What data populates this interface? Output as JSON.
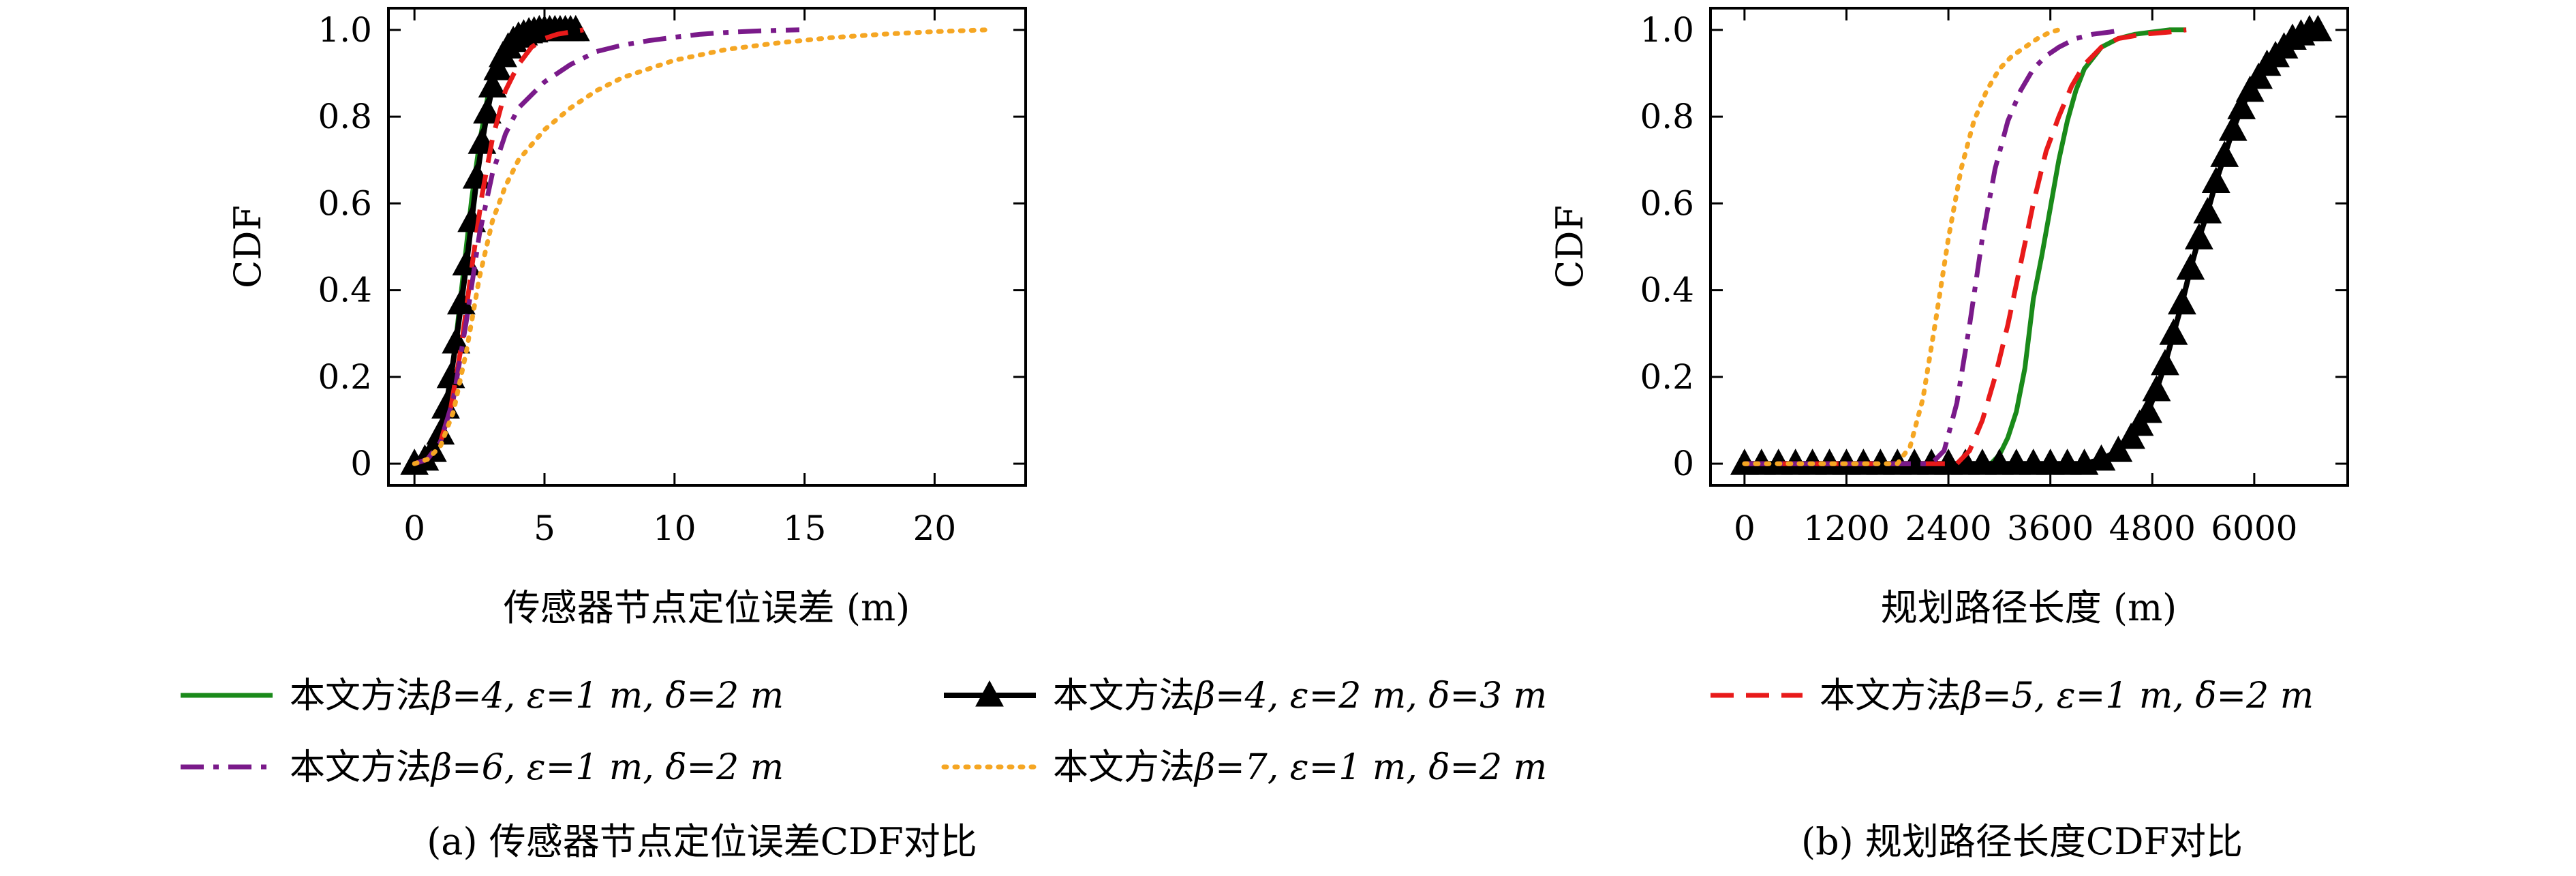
{
  "chart_data": [
    {
      "type": "line",
      "caption": "(a) 传感器节点定位误差CDF对比",
      "xlabel": "传感器节点定位误差 (m)",
      "ylabel": "CDF",
      "xlim": [
        -1,
        23.5
      ],
      "ylim": [
        -0.05,
        1.05
      ],
      "xticks": [
        0,
        5,
        10,
        15,
        20
      ],
      "yticks": [
        0,
        0.2,
        0.4,
        0.6,
        0.8,
        1.0
      ],
      "xtick_labels": [
        "0",
        "5",
        "10",
        "15",
        "20"
      ],
      "ytick_labels": [
        "0",
        "0.2",
        "0.4",
        "0.6",
        "0.8",
        "1.0"
      ],
      "grid": false,
      "series": [
        {
          "id": "s1",
          "x": [
            0,
            0.5,
            1.0,
            1.3,
            1.6,
            1.9,
            2.2,
            2.5,
            2.8,
            3.1,
            3.5,
            4.0,
            4.5,
            5.0,
            5.5,
            6.0
          ],
          "y": [
            0,
            0.01,
            0.06,
            0.15,
            0.29,
            0.45,
            0.61,
            0.74,
            0.84,
            0.91,
            0.96,
            0.985,
            0.995,
            1.0,
            1.0,
            1.0
          ]
        },
        {
          "id": "s2",
          "x": [
            0,
            0.4,
            0.7,
            1.0,
            1.2,
            1.4,
            1.6,
            1.8,
            2.0,
            2.2,
            2.4,
            2.6,
            2.8,
            3.0,
            3.2,
            3.4,
            3.6,
            3.8,
            4.0,
            4.2,
            4.4,
            4.6,
            4.8,
            5.0,
            5.2,
            5.4,
            5.6,
            5.8,
            6.0,
            6.2
          ],
          "y": [
            0,
            0.01,
            0.03,
            0.07,
            0.13,
            0.2,
            0.28,
            0.37,
            0.46,
            0.56,
            0.66,
            0.74,
            0.81,
            0.87,
            0.91,
            0.94,
            0.96,
            0.975,
            0.985,
            0.99,
            0.995,
            0.997,
            1.0,
            1.0,
            1.0,
            1.0,
            1.0,
            1.0,
            1.0,
            1.0
          ]
        },
        {
          "id": "s3",
          "x": [
            0,
            0.5,
            1.0,
            1.4,
            1.8,
            2.2,
            2.6,
            3.0,
            3.5,
            4.0,
            4.5,
            5.0,
            5.5,
            6.0,
            6.5
          ],
          "y": [
            0,
            0.01,
            0.05,
            0.13,
            0.27,
            0.45,
            0.62,
            0.75,
            0.86,
            0.92,
            0.96,
            0.98,
            0.99,
            0.995,
            1.0
          ]
        },
        {
          "id": "s4",
          "x": [
            0,
            0.5,
            1.0,
            1.5,
            2.0,
            2.5,
            3.0,
            3.5,
            4.0,
            5.0,
            6.0,
            7.0,
            8.0,
            9.0,
            10.0,
            11.0,
            12.0,
            13.0,
            14.0,
            14.8
          ],
          "y": [
            0,
            0.01,
            0.05,
            0.15,
            0.33,
            0.53,
            0.67,
            0.76,
            0.82,
            0.88,
            0.92,
            0.95,
            0.965,
            0.975,
            0.983,
            0.99,
            0.994,
            0.997,
            0.999,
            1.0
          ]
        },
        {
          "id": "s5",
          "x": [
            0,
            0.5,
            1.0,
            1.5,
            2.0,
            2.5,
            3.0,
            3.5,
            4.0,
            5.0,
            6.0,
            7.0,
            8.0,
            9.0,
            10.0,
            12.0,
            14.0,
            16.0,
            18.0,
            20.0,
            22.0
          ],
          "y": [
            0,
            0.01,
            0.04,
            0.12,
            0.26,
            0.43,
            0.56,
            0.64,
            0.7,
            0.77,
            0.82,
            0.86,
            0.89,
            0.91,
            0.93,
            0.955,
            0.97,
            0.982,
            0.99,
            0.996,
            1.0
          ]
        }
      ]
    },
    {
      "type": "line",
      "caption": "(b) 规划路径长度CDF对比",
      "xlabel": "规划路径长度 (m)",
      "ylabel": "CDF",
      "xlim": [
        -400,
        7100
      ],
      "ylim": [
        -0.05,
        1.05
      ],
      "xticks": [
        0,
        1200,
        2400,
        3600,
        4800,
        6000
      ],
      "yticks": [
        0,
        0.2,
        0.4,
        0.6,
        0.8,
        1.0
      ],
      "xtick_labels": [
        "0",
        "1200",
        "2400",
        "3600",
        "4800",
        "6000"
      ],
      "ytick_labels": [
        "0",
        "0.2",
        "0.4",
        "0.6",
        "0.8",
        "1.0"
      ],
      "grid": false,
      "series": [
        {
          "id": "s1",
          "x": [
            0,
            2900,
            3000,
            3100,
            3200,
            3300,
            3350,
            3400,
            3500,
            3600,
            3700,
            3800,
            3900,
            4000,
            4200,
            4400,
            4600,
            4800,
            5000,
            5200
          ],
          "y": [
            0,
            0,
            0.02,
            0.06,
            0.12,
            0.22,
            0.3,
            0.38,
            0.48,
            0.59,
            0.7,
            0.79,
            0.86,
            0.91,
            0.96,
            0.98,
            0.99,
            0.995,
            1.0,
            1.0
          ]
        },
        {
          "id": "s2",
          "x": [
            0,
            200,
            400,
            600,
            800,
            1000,
            1200,
            1400,
            1600,
            1800,
            2000,
            2200,
            2400,
            2600,
            2800,
            3000,
            3200,
            3400,
            3600,
            3800,
            4000,
            4200,
            4400,
            4550,
            4650,
            4750,
            4850,
            4950,
            5050,
            5150,
            5250,
            5350,
            5450,
            5550,
            5650,
            5750,
            5850,
            5950,
            6050,
            6150,
            6250,
            6350,
            6450,
            6550,
            6650,
            6750
          ],
          "y": [
            0,
            0,
            0,
            0,
            0,
            0,
            0,
            0,
            0,
            0,
            0,
            0,
            0,
            0,
            0,
            0,
            0,
            0,
            0,
            0,
            0,
            0.01,
            0.03,
            0.06,
            0.09,
            0.12,
            0.17,
            0.23,
            0.3,
            0.37,
            0.45,
            0.52,
            0.58,
            0.65,
            0.71,
            0.77,
            0.82,
            0.86,
            0.89,
            0.92,
            0.94,
            0.96,
            0.98,
            0.99,
            1.0,
            1.0
          ]
        },
        {
          "id": "s3",
          "x": [
            0,
            2500,
            2650,
            2800,
            2950,
            3100,
            3250,
            3400,
            3550,
            3700,
            3850,
            4000,
            4200,
            4400,
            4700,
            5000,
            5200
          ],
          "y": [
            0,
            0,
            0.03,
            0.1,
            0.2,
            0.32,
            0.46,
            0.6,
            0.72,
            0.8,
            0.87,
            0.92,
            0.96,
            0.98,
            0.99,
            0.995,
            1.0
          ]
        },
        {
          "id": "s4",
          "x": [
            0,
            2200,
            2350,
            2500,
            2650,
            2800,
            2950,
            3100,
            3250,
            3400,
            3550,
            3700,
            3900,
            4100,
            4300,
            4450
          ],
          "y": [
            0,
            0,
            0.03,
            0.14,
            0.32,
            0.52,
            0.68,
            0.79,
            0.86,
            0.91,
            0.94,
            0.96,
            0.98,
            0.99,
            0.995,
            1.0
          ]
        },
        {
          "id": "s5",
          "x": [
            0,
            1800,
            1950,
            2100,
            2250,
            2400,
            2550,
            2700,
            2850,
            3000,
            3150,
            3300,
            3450,
            3600,
            3700
          ],
          "y": [
            0,
            0,
            0.04,
            0.15,
            0.33,
            0.52,
            0.68,
            0.79,
            0.86,
            0.91,
            0.94,
            0.96,
            0.98,
            0.995,
            1.0
          ]
        }
      ]
    }
  ],
  "legend": {
    "items": [
      {
        "id": "s1",
        "label_prefix": "本文方法",
        "label_math": "β=4, ε=1 m, δ=2 m",
        "color": "#1a8a1a",
        "style": "solid"
      },
      {
        "id": "s2",
        "label_prefix": "本文方法",
        "label_math": "β=4, ε=2 m, δ=3 m",
        "color": "#000000",
        "style": "solid-triangle"
      },
      {
        "id": "s3",
        "label_prefix": "本文方法",
        "label_math": "β=5, ε=1 m, δ=2 m",
        "color": "#e81a1a",
        "style": "dashed"
      },
      {
        "id": "s4",
        "label_prefix": "本文方法",
        "label_math": "β=6, ε=1 m, δ=2 m",
        "color": "#7a1a8a",
        "style": "dashdot"
      },
      {
        "id": "s5",
        "label_prefix": "本文方法",
        "label_math": "β=7, ε=1 m, δ=2 m",
        "color": "#f5a623",
        "style": "dotted"
      }
    ]
  }
}
